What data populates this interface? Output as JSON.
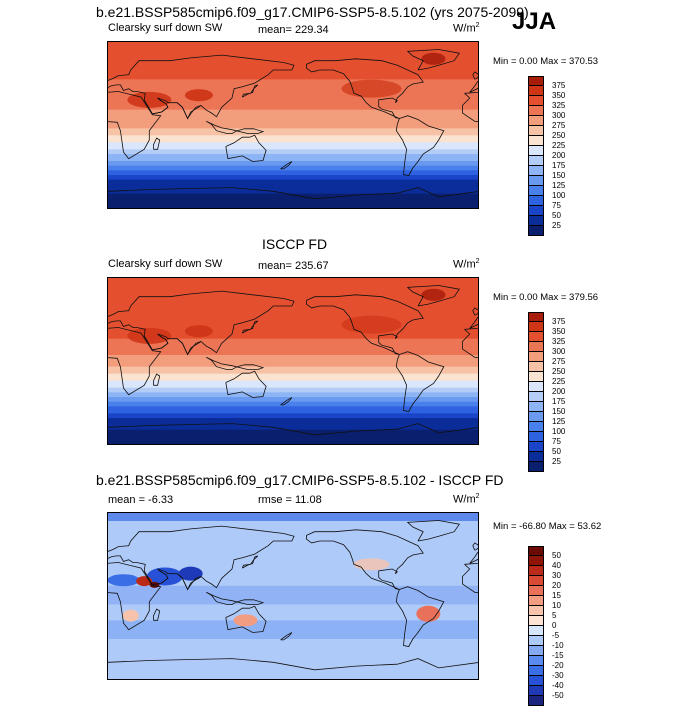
{
  "header": {
    "title": "b.e21.BSSP585cmip6.f09_g17.CMIP6-SSP5-8.5.102 (yrs 2075-2099)",
    "season": "JJA"
  },
  "panels": [
    {
      "title": "",
      "variable": "Clearsky surf down SW",
      "stat": "mean= 229.34",
      "stat2": "",
      "units": "W/m",
      "units_sup": "2",
      "minmax": "Min =   0.00 Max = 370.53",
      "colorbar_labels": [
        "375",
        "350",
        "325",
        "300",
        "275",
        "250",
        "225",
        "200",
        "175",
        "150",
        "125",
        "100",
        "75",
        "50",
        "25"
      ]
    },
    {
      "title": "ISCCP FD",
      "variable": "Clearsky surf down SW",
      "stat": "mean= 235.67",
      "stat2": "",
      "units": "W/m",
      "units_sup": "2",
      "minmax": "Min =   0.00 Max = 379.56",
      "colorbar_labels": [
        "375",
        "350",
        "325",
        "300",
        "275",
        "250",
        "225",
        "200",
        "175",
        "150",
        "125",
        "100",
        "75",
        "50",
        "25"
      ]
    },
    {
      "title": "b.e21.BSSP585cmip6.f09_g17.CMIP6-SSP5-8.5.102 - ISCCP FD",
      "variable": "mean =  -6.33",
      "stat": "rmse =  11.08",
      "stat2": "",
      "units": "W/m",
      "units_sup": "2",
      "minmax": "Min = -66.80 Max =  53.62",
      "colorbar_labels": [
        "50",
        "40",
        "30",
        "20",
        "15",
        "10",
        "5",
        "0",
        "-5",
        "-10",
        "-15",
        "-20",
        "-30",
        "-40",
        "-50"
      ]
    }
  ],
  "colors": {
    "abs_scale": [
      "#0a1f6e",
      "#0b2d9a",
      "#1a45c8",
      "#2f62e0",
      "#4a80ec",
      "#6a9af0",
      "#8db4f4",
      "#b4cdf7",
      "#d9e6fb",
      "#fbe3d2",
      "#f7c3a7",
      "#f29d7c",
      "#ec7555",
      "#e4502f",
      "#cf3517",
      "#a81d0a"
    ],
    "diff_scale": [
      "#1a237e",
      "#1e3ab8",
      "#2752d8",
      "#3a6ee6",
      "#5b8af0",
      "#84aaf4",
      "#aecaf8",
      "#d8e6fb",
      "#fde3d6",
      "#f8c3ad",
      "#f29c82",
      "#e9715a",
      "#d84a33",
      "#bb2a18",
      "#8f1408",
      "#6a0a04"
    ]
  },
  "chart_data": [
    {
      "type": "heatmap",
      "title": "b.e21.BSSP585cmip6.f09_g17.CMIP6-SSP5-8.5.102 (yrs 2075-2099)",
      "variable": "Clearsky surf down SW",
      "units": "W/m2",
      "season": "JJA",
      "mean": 229.34,
      "min": 0.0,
      "max": 370.53,
      "levels": [
        25,
        50,
        75,
        100,
        125,
        150,
        175,
        200,
        225,
        250,
        275,
        300,
        325,
        350,
        375
      ],
      "zonal_profile": {
        "lat": [
          90,
          60,
          30,
          0,
          -30,
          -60,
          -90
        ],
        "value": [
          345,
          330,
          315,
          280,
          180,
          40,
          0
        ]
      }
    },
    {
      "type": "heatmap",
      "title": "ISCCP FD",
      "variable": "Clearsky surf down SW",
      "units": "W/m2",
      "season": "JJA",
      "mean": 235.67,
      "min": 0.0,
      "max": 379.56,
      "levels": [
        25,
        50,
        75,
        100,
        125,
        150,
        175,
        200,
        225,
        250,
        275,
        300,
        325,
        350,
        375
      ],
      "zonal_profile": {
        "lat": [
          90,
          60,
          30,
          0,
          -30,
          -60,
          -90
        ],
        "value": [
          340,
          335,
          330,
          290,
          190,
          45,
          0
        ]
      }
    },
    {
      "type": "heatmap",
      "title": "b.e21.BSSP585cmip6.f09_g17.CMIP6-SSP5-8.5.102 - ISCCP FD",
      "units": "W/m2",
      "mean": -6.33,
      "rmse": 11.08,
      "min": -66.8,
      "max": 53.62,
      "levels": [
        -50,
        -40,
        -30,
        -20,
        -15,
        -10,
        -5,
        0,
        5,
        10,
        15,
        20,
        30,
        40,
        50
      ]
    }
  ]
}
